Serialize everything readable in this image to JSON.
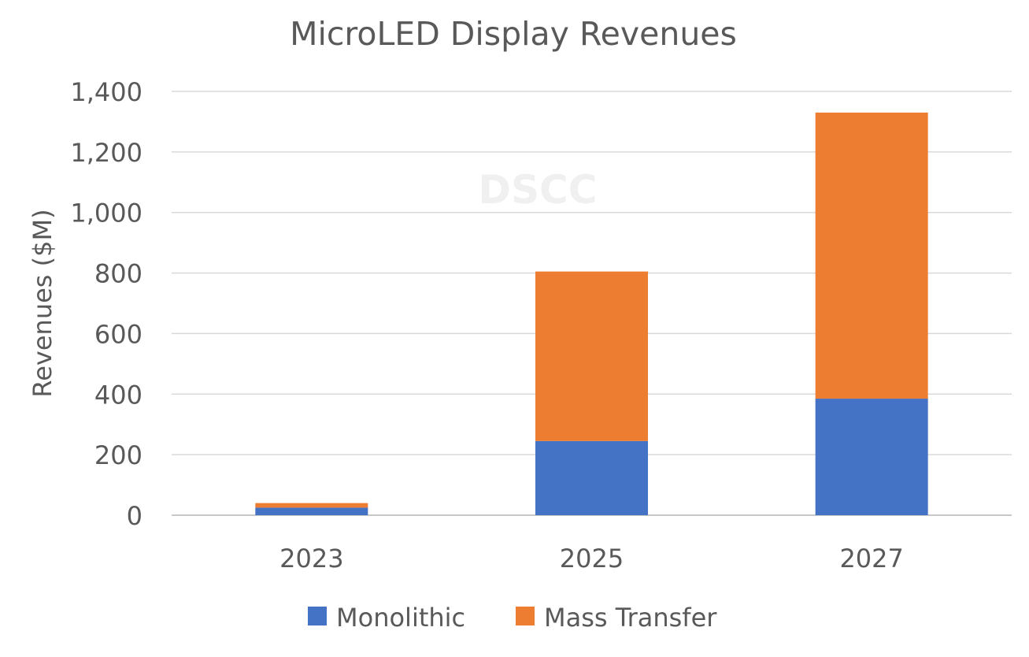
{
  "chart_data": {
    "type": "bar",
    "stacked": true,
    "title": "MicroLED Display Revenues",
    "watermark": "DSCC",
    "xlabel": "",
    "ylabel": "Revenues ($M)",
    "categories": [
      "2023",
      "2025",
      "2027"
    ],
    "series": [
      {
        "name": "Monolithic",
        "color": "#4472C4",
        "values": [
          25,
          245,
          385
        ]
      },
      {
        "name": "Mass Transfer",
        "color": "#ED7D31",
        "values": [
          15,
          560,
          945
        ]
      }
    ],
    "ylim": [
      0,
      1400
    ],
    "yticks": [
      0,
      200,
      400,
      600,
      800,
      1000,
      1200,
      1400
    ],
    "ytick_labels": [
      "0",
      "200",
      "400",
      "600",
      "800",
      "1,000",
      "1,200",
      "1,400"
    ],
    "grid": true,
    "legend_position": "bottom"
  }
}
